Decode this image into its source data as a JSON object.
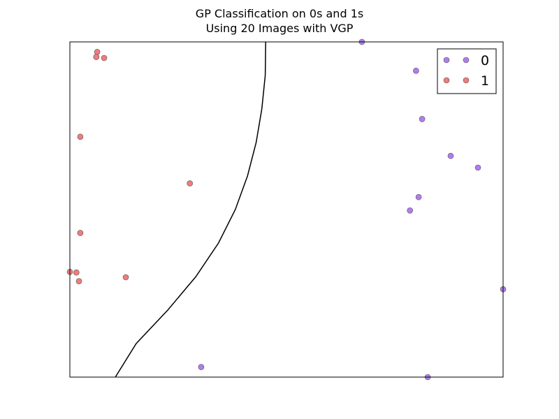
{
  "chart_data": {
    "type": "scatter",
    "title": "GP Classification on 0s and 1s\nUsing 20 Images with VGP",
    "title_lines": [
      "GP Classification on 0s and 1s",
      "Using 20 Images with VGP"
    ],
    "xlabel": "",
    "ylabel": "",
    "xlim": [
      0,
      1
    ],
    "ylim": [
      0,
      1
    ],
    "axis_ticks_visible": false,
    "grid": false,
    "legend_position": "top-right",
    "series": [
      {
        "name": "0",
        "color": "#b07cf0",
        "points": [
          [
            0.674,
            1.0
          ],
          [
            0.799,
            0.914
          ],
          [
            0.813,
            0.77
          ],
          [
            0.879,
            0.66
          ],
          [
            0.942,
            0.625
          ],
          [
            0.805,
            0.537
          ],
          [
            0.785,
            0.497
          ],
          [
            1.0,
            0.262
          ],
          [
            0.303,
            0.03
          ],
          [
            0.826,
            0.0
          ]
        ]
      },
      {
        "name": "1",
        "color": "#f07c7c",
        "points": [
          [
            0.063,
            0.97
          ],
          [
            0.061,
            0.955
          ],
          [
            0.079,
            0.952
          ],
          [
            0.024,
            0.717
          ],
          [
            0.277,
            0.578
          ],
          [
            0.024,
            0.43
          ],
          [
            0.0,
            0.314
          ],
          [
            0.015,
            0.312
          ],
          [
            0.021,
            0.286
          ],
          [
            0.129,
            0.298
          ]
        ]
      }
    ],
    "decision_boundary": {
      "color": "#000000",
      "points": [
        [
          0.452,
          1.0
        ],
        [
          0.451,
          0.9
        ],
        [
          0.443,
          0.8
        ],
        [
          0.43,
          0.7
        ],
        [
          0.41,
          0.6
        ],
        [
          0.382,
          0.5
        ],
        [
          0.343,
          0.4
        ],
        [
          0.291,
          0.3
        ],
        [
          0.226,
          0.2
        ],
        [
          0.153,
          0.1
        ],
        [
          0.105,
          0.0
        ]
      ]
    }
  }
}
